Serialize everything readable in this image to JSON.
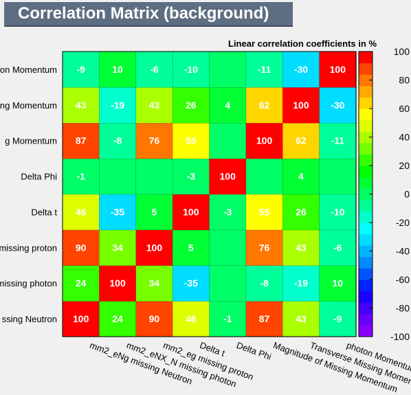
{
  "title": "Correlation Matrix (background)",
  "chart_data": {
    "type": "heatmap",
    "subtitle": "Linear correlation coefficients in %",
    "variables": [
      "mm2_eNg missing Neutron",
      "mm2_eNX_N missing photon",
      "mm2_eg missing proton",
      "Delta t",
      "Delta Phi",
      "Magnitude of Missing Momentum",
      "Transverse Missing Momentum",
      "photon Momentum"
    ],
    "y_labels_visible": [
      "ssing Neutron",
      "missing photon",
      "missing proton",
      "Delta t",
      "Delta Phi",
      "g Momentum",
      "ng Momentum",
      "on Momentum"
    ],
    "x_labels_visible": [
      "mm2_eNg missing Neutron",
      "mm2_eNX_N missing photon",
      "mm2_eg missing proton",
      "Delta t",
      "Delta Phi",
      "Magnitude of Missing Momentum",
      "Transverse Missing Momen",
      "photon Momentum"
    ],
    "matrix": [
      [
        100,
        24,
        90,
        46,
        -1,
        87,
        43,
        -9
      ],
      [
        24,
        100,
        34,
        -35,
        null,
        -8,
        -19,
        10
      ],
      [
        90,
        34,
        100,
        5,
        null,
        76,
        43,
        -6
      ],
      [
        46,
        -35,
        5,
        100,
        -3,
        55,
        26,
        -10
      ],
      [
        -1,
        null,
        null,
        -3,
        100,
        null,
        4,
        null
      ],
      [
        87,
        -8,
        76,
        55,
        null,
        100,
        62,
        -11
      ],
      [
        43,
        -19,
        43,
        26,
        4,
        62,
        100,
        -30
      ],
      [
        -9,
        10,
        -6,
        -10,
        null,
        -11,
        -30,
        100
      ]
    ],
    "zlim": [
      -100,
      100
    ],
    "colorbar_ticks": [
      "100",
      "80",
      "60",
      "40",
      "20",
      "0",
      "-20",
      "-40",
      "-60",
      "-80",
      "-100"
    ],
    "palette": [
      "#8800ff",
      "#6a00ff",
      "#4400ff",
      "#1a00ff",
      "#0022ff",
      "#0055ff",
      "#0088ff",
      "#00b4ff",
      "#00ddff",
      "#00ffff",
      "#00ffcc",
      "#00ff99",
      "#00ff66",
      "#00ff33",
      "#00ff00",
      "#33ff00",
      "#77ff00",
      "#aaff00",
      "#ddff00",
      "#ffff00",
      "#ffd500",
      "#ffaa00",
      "#ff7700",
      "#ff4400",
      "#ff0000"
    ]
  }
}
